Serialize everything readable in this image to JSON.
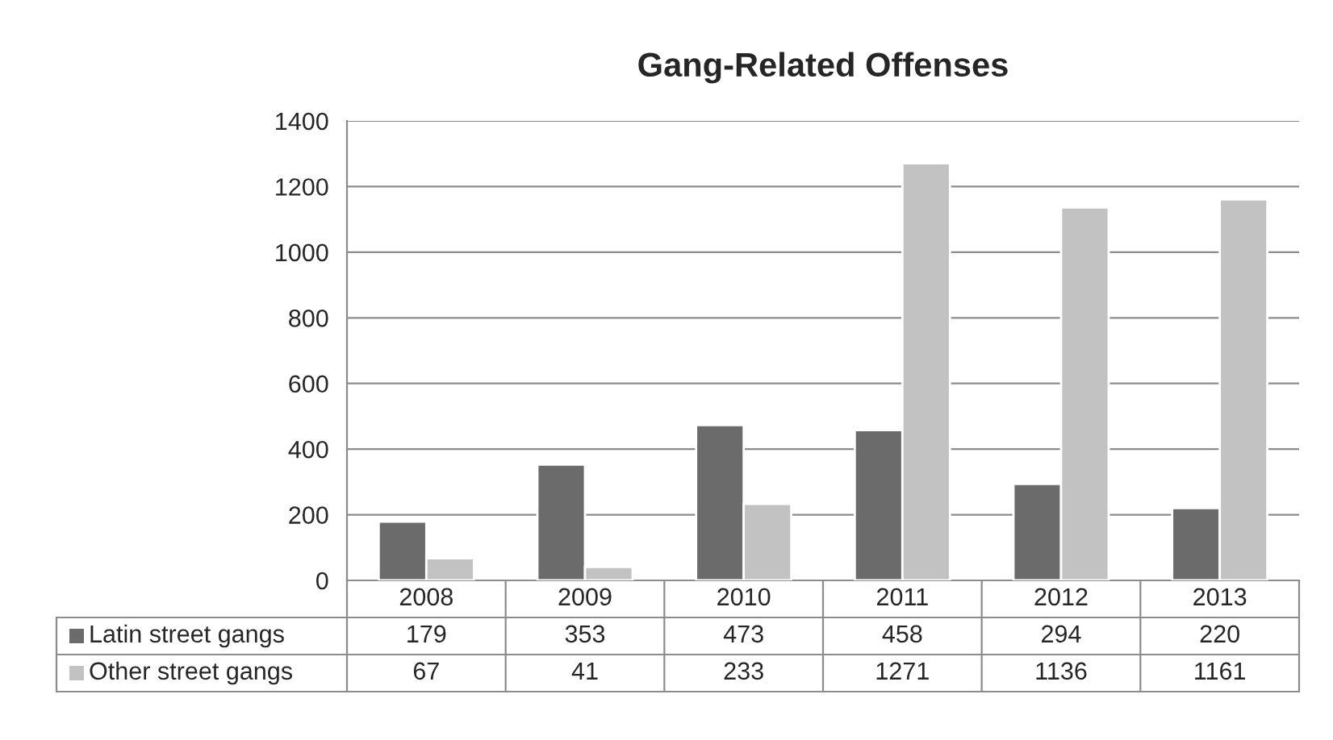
{
  "chart_data": {
    "type": "bar",
    "title": "Gang-Related Offenses",
    "categories": [
      "2008",
      "2009",
      "2010",
      "2011",
      "2012",
      "2013"
    ],
    "series": [
      {
        "name": "Latin street gangs",
        "color": "#6b6b6b",
        "values": [
          179,
          353,
          473,
          458,
          294,
          220
        ]
      },
      {
        "name": "Other street gangs",
        "color": "#c2c2c2",
        "values": [
          67,
          41,
          233,
          1271,
          1136,
          1161
        ]
      }
    ],
    "ylim": [
      0,
      1400
    ],
    "yticks": [
      0,
      200,
      400,
      600,
      800,
      1000,
      1200,
      1400
    ],
    "grid": "y",
    "data_labels": true,
    "legend": "bottom left"
  }
}
